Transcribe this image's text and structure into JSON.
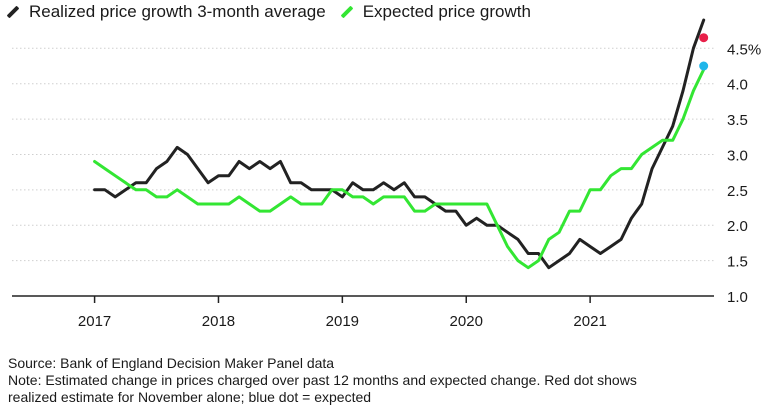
{
  "legend": [
    {
      "label": "Realized price growth 3-month average",
      "color": "#222222"
    },
    {
      "label": "Expected price growth",
      "color": "#33e633"
    }
  ],
  "chart_data": {
    "type": "line",
    "title": "",
    "xlabel": "",
    "ylabel": "",
    "ylim": [
      1.0,
      4.9
    ],
    "y_ticks": [
      "1.0",
      "1.5",
      "2.0",
      "2.5",
      "3.0",
      "3.5",
      "4.0",
      "4.5%"
    ],
    "y_tick_values": [
      1.0,
      1.5,
      2.0,
      2.5,
      3.0,
      3.5,
      4.0,
      4.5
    ],
    "x_ticks": [
      "2017",
      "2018",
      "2019",
      "2020",
      "2021"
    ],
    "x_range": [
      "2017-01",
      "2021-12"
    ],
    "grid": "horizontal",
    "series": [
      {
        "name": "Realized price growth 3-month average",
        "color": "#222222",
        "points": [
          [
            "2017-01",
            2.5
          ],
          [
            "2017-02",
            2.5
          ],
          [
            "2017-03",
            2.4
          ],
          [
            "2017-04",
            2.5
          ],
          [
            "2017-05",
            2.6
          ],
          [
            "2017-06",
            2.6
          ],
          [
            "2017-07",
            2.8
          ],
          [
            "2017-08",
            2.9
          ],
          [
            "2017-09",
            3.1
          ],
          [
            "2017-10",
            3.0
          ],
          [
            "2017-11",
            2.8
          ],
          [
            "2017-12",
            2.6
          ],
          [
            "2018-01",
            2.7
          ],
          [
            "2018-02",
            2.7
          ],
          [
            "2018-03",
            2.9
          ],
          [
            "2018-04",
            2.8
          ],
          [
            "2018-05",
            2.9
          ],
          [
            "2018-06",
            2.8
          ],
          [
            "2018-07",
            2.9
          ],
          [
            "2018-08",
            2.6
          ],
          [
            "2018-09",
            2.6
          ],
          [
            "2018-10",
            2.5
          ],
          [
            "2018-11",
            2.5
          ],
          [
            "2018-12",
            2.5
          ],
          [
            "2019-01",
            2.4
          ],
          [
            "2019-02",
            2.6
          ],
          [
            "2019-03",
            2.5
          ],
          [
            "2019-04",
            2.5
          ],
          [
            "2019-05",
            2.6
          ],
          [
            "2019-06",
            2.5
          ],
          [
            "2019-07",
            2.6
          ],
          [
            "2019-08",
            2.4
          ],
          [
            "2019-09",
            2.4
          ],
          [
            "2019-10",
            2.3
          ],
          [
            "2019-11",
            2.2
          ],
          [
            "2019-12",
            2.2
          ],
          [
            "2020-01",
            2.0
          ],
          [
            "2020-02",
            2.1
          ],
          [
            "2020-03",
            2.0
          ],
          [
            "2020-04",
            2.0
          ],
          [
            "2020-05",
            1.9
          ],
          [
            "2020-06",
            1.8
          ],
          [
            "2020-07",
            1.6
          ],
          [
            "2020-08",
            1.6
          ],
          [
            "2020-09",
            1.4
          ],
          [
            "2020-10",
            1.5
          ],
          [
            "2020-11",
            1.6
          ],
          [
            "2020-12",
            1.8
          ],
          [
            "2021-01",
            1.7
          ],
          [
            "2021-02",
            1.6
          ],
          [
            "2021-03",
            1.7
          ],
          [
            "2021-04",
            1.8
          ],
          [
            "2021-05",
            2.1
          ],
          [
            "2021-06",
            2.3
          ],
          [
            "2021-07",
            2.8
          ],
          [
            "2021-08",
            3.1
          ],
          [
            "2021-09",
            3.4
          ],
          [
            "2021-10",
            3.9
          ],
          [
            "2021-11",
            4.5
          ],
          [
            "2021-12",
            4.9
          ]
        ]
      },
      {
        "name": "Expected price growth",
        "color": "#33e633",
        "points": [
          [
            "2017-01",
            2.9
          ],
          [
            "2017-02",
            2.8
          ],
          [
            "2017-03",
            2.7
          ],
          [
            "2017-04",
            2.6
          ],
          [
            "2017-05",
            2.5
          ],
          [
            "2017-06",
            2.5
          ],
          [
            "2017-07",
            2.4
          ],
          [
            "2017-08",
            2.4
          ],
          [
            "2017-09",
            2.5
          ],
          [
            "2017-10",
            2.4
          ],
          [
            "2017-11",
            2.3
          ],
          [
            "2017-12",
            2.3
          ],
          [
            "2018-01",
            2.3
          ],
          [
            "2018-02",
            2.3
          ],
          [
            "2018-03",
            2.4
          ],
          [
            "2018-04",
            2.3
          ],
          [
            "2018-05",
            2.2
          ],
          [
            "2018-06",
            2.2
          ],
          [
            "2018-07",
            2.3
          ],
          [
            "2018-08",
            2.4
          ],
          [
            "2018-09",
            2.3
          ],
          [
            "2018-10",
            2.3
          ],
          [
            "2018-11",
            2.3
          ],
          [
            "2018-12",
            2.5
          ],
          [
            "2019-01",
            2.5
          ],
          [
            "2019-02",
            2.4
          ],
          [
            "2019-03",
            2.4
          ],
          [
            "2019-04",
            2.3
          ],
          [
            "2019-05",
            2.4
          ],
          [
            "2019-06",
            2.4
          ],
          [
            "2019-07",
            2.4
          ],
          [
            "2019-08",
            2.2
          ],
          [
            "2019-09",
            2.2
          ],
          [
            "2019-10",
            2.3
          ],
          [
            "2019-11",
            2.3
          ],
          [
            "2019-12",
            2.3
          ],
          [
            "2020-01",
            2.3
          ],
          [
            "2020-02",
            2.3
          ],
          [
            "2020-03",
            2.3
          ],
          [
            "2020-04",
            2.0
          ],
          [
            "2020-05",
            1.7
          ],
          [
            "2020-06",
            1.5
          ],
          [
            "2020-07",
            1.4
          ],
          [
            "2020-08",
            1.5
          ],
          [
            "2020-09",
            1.8
          ],
          [
            "2020-10",
            1.9
          ],
          [
            "2020-11",
            2.2
          ],
          [
            "2020-12",
            2.2
          ],
          [
            "2021-01",
            2.5
          ],
          [
            "2021-02",
            2.5
          ],
          [
            "2021-03",
            2.7
          ],
          [
            "2021-04",
            2.8
          ],
          [
            "2021-05",
            2.8
          ],
          [
            "2021-06",
            3.0
          ],
          [
            "2021-07",
            3.1
          ],
          [
            "2021-08",
            3.2
          ],
          [
            "2021-09",
            3.2
          ],
          [
            "2021-10",
            3.5
          ],
          [
            "2021-11",
            3.9
          ],
          [
            "2021-12",
            4.2
          ]
        ]
      }
    ],
    "markers": [
      {
        "date": "2021-12",
        "value": 4.65,
        "color": "#e8204a"
      },
      {
        "date": "2021-12",
        "value": 4.25,
        "color": "#1fb6ea"
      }
    ]
  },
  "notes": {
    "source": "Source: Bank of England Decision Maker Panel data",
    "note_line1": "Note: Estimated change in prices charged over past 12 months and expected change. Red dot shows",
    "note_line2": "realized estimate for November alone; blue dot = expected"
  }
}
